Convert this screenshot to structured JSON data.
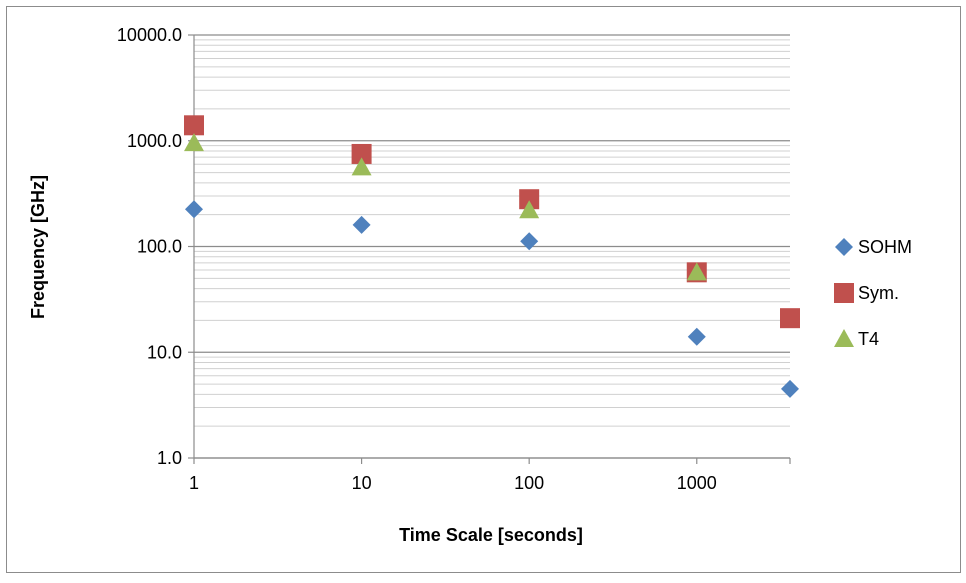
{
  "chart_data": {
    "type": "scatter",
    "title": "",
    "xlabel": "Time Scale [seconds]",
    "ylabel": "Frequency [GHz]",
    "x_scale": "log",
    "y_scale": "log",
    "xlim": [
      1,
      3600
    ],
    "ylim": [
      1,
      10000
    ],
    "x_ticks": [
      {
        "value": 1,
        "label": "1"
      },
      {
        "value": 10,
        "label": "10"
      },
      {
        "value": 100,
        "label": "100"
      },
      {
        "value": 1000,
        "label": "1000"
      }
    ],
    "y_ticks": [
      {
        "value": 1,
        "label": "1.0"
      },
      {
        "value": 10,
        "label": "10.0"
      },
      {
        "value": 100,
        "label": "100.0"
      },
      {
        "value": 1000,
        "label": "1000.0"
      },
      {
        "value": 10000,
        "label": "10000.0"
      }
    ],
    "grid": {
      "major": true,
      "minor": true
    },
    "legend_position": "right",
    "series": [
      {
        "name": "SOHM",
        "marker": "diamond",
        "color": "#4f81bd",
        "points": [
          {
            "x": 1,
            "y": 225
          },
          {
            "x": 10,
            "y": 160
          },
          {
            "x": 100,
            "y": 112
          },
          {
            "x": 1000,
            "y": 14
          },
          {
            "x": 3600,
            "y": 4.5
          }
        ]
      },
      {
        "name": "Sym.",
        "marker": "square",
        "color": "#c0504d",
        "points": [
          {
            "x": 1,
            "y": 1400
          },
          {
            "x": 10,
            "y": 750
          },
          {
            "x": 100,
            "y": 280
          },
          {
            "x": 1000,
            "y": 57
          },
          {
            "x": 3600,
            "y": 21
          }
        ]
      },
      {
        "name": "T4",
        "marker": "triangle",
        "color": "#9bbb59",
        "points": [
          {
            "x": 1,
            "y": 950
          },
          {
            "x": 10,
            "y": 560
          },
          {
            "x": 100,
            "y": 220
          },
          {
            "x": 1000,
            "y": 57
          }
        ]
      }
    ]
  }
}
